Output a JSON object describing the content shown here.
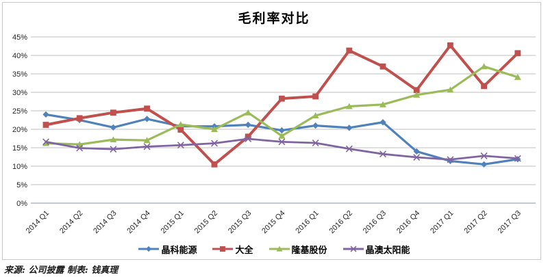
{
  "chart_data": {
    "type": "line",
    "title": "毛利率对比",
    "categories": [
      "2014 Q1",
      "2014 Q2",
      "2014 Q3",
      "2014 Q4",
      "2015 Q1",
      "2015 Q2",
      "2015 Q3",
      "2015 Q4",
      "2016 Q1",
      "2016 Q2",
      "2016 Q3",
      "2016 Q4",
      "2017 Q1",
      "2017 Q2",
      "2017 Q3"
    ],
    "series": [
      {
        "name": "晶科能源",
        "color": "#4F81BD",
        "marker": "diamond",
        "line_width": 3.2,
        "values": [
          24.0,
          22.5,
          20.5,
          22.8,
          20.8,
          20.8,
          21.2,
          19.7,
          21.0,
          20.4,
          21.9,
          14.0,
          11.4,
          10.5,
          11.9
        ]
      },
      {
        "name": "大全",
        "color": "#C0504D",
        "marker": "square",
        "line_width": 4,
        "values": [
          21.2,
          23.0,
          24.5,
          25.6,
          19.9,
          10.5,
          18.0,
          28.3,
          28.9,
          41.3,
          37.0,
          30.6,
          42.7,
          31.7,
          40.6
        ]
      },
      {
        "name": "隆基股份",
        "color": "#9BBB59",
        "marker": "triangle",
        "line_width": 3.2,
        "values": [
          16.2,
          15.9,
          17.2,
          17.0,
          21.3,
          20.0,
          24.5,
          18.2,
          23.7,
          26.2,
          26.7,
          29.3,
          30.7,
          37.0,
          34.1
        ]
      },
      {
        "name": "晶澳太阳能",
        "color": "#8064A2",
        "marker": "x",
        "line_width": 2.8,
        "values": [
          16.6,
          14.9,
          14.6,
          15.3,
          15.7,
          16.2,
          17.4,
          16.6,
          16.3,
          14.7,
          13.3,
          12.4,
          11.8,
          12.8,
          12.1
        ]
      }
    ],
    "xlabel": "",
    "ylabel": "",
    "ylim": [
      0,
      45
    ],
    "y_step": 5,
    "y_tick_labels": [
      "0%",
      "5%",
      "10%",
      "15%",
      "20%",
      "25%",
      "30%",
      "35%",
      "40%",
      "45%"
    ],
    "grid": true,
    "legend_position": "bottom",
    "colors": {
      "grid": "#bfbfbf",
      "axis": "#9aa7c4",
      "text": "#262626",
      "frame_border": "#c9c9c9",
      "background": "#ffffff"
    }
  },
  "footer": {
    "note": "来源: 公司披露  制表: 钱真理"
  }
}
